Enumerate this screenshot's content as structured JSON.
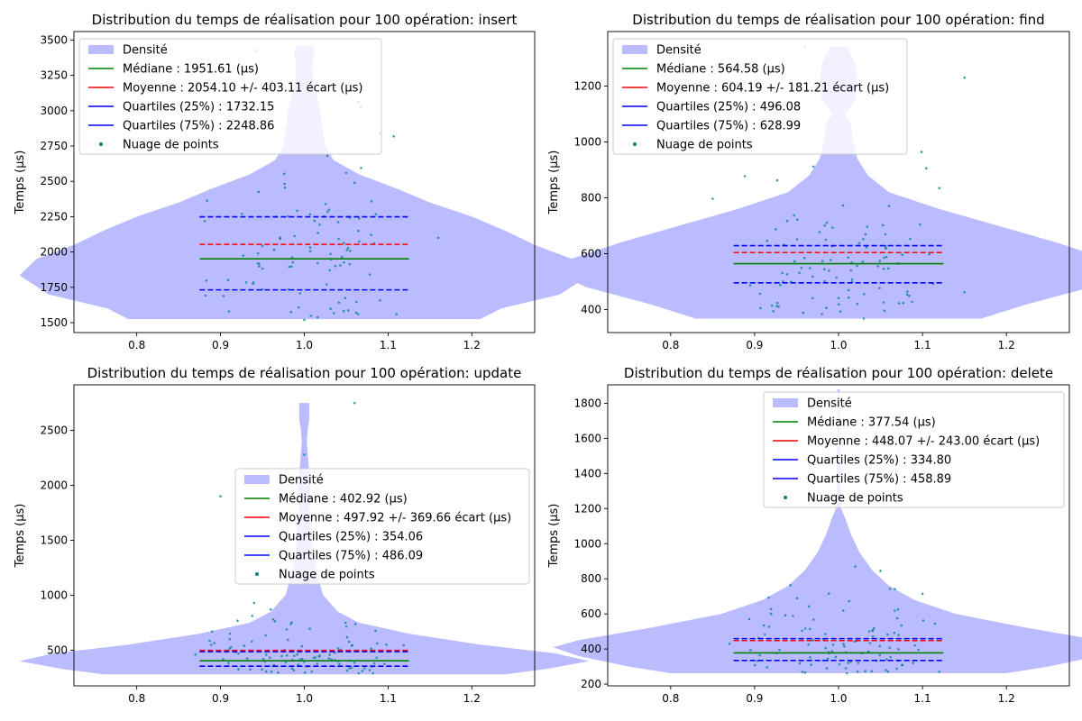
{
  "chart_data": [
    {
      "type": "violin",
      "title": "Distribution du temps de réalisation pour 100 opération: insert",
      "ylabel": "Temps (μs)",
      "xlim": [
        0.725,
        1.275
      ],
      "ylim": [
        1430,
        3560
      ],
      "xticks": [
        "0.8",
        "0.9",
        "1.0",
        "1.1",
        "1.2"
      ],
      "yticks": [
        "1500",
        "1750",
        "2000",
        "2250",
        "2500",
        "2750",
        "3000",
        "3250",
        "3500"
      ],
      "legend": {
        "position": "upper-left",
        "entries": [
          "Densité",
          "Médiane : 1951.61 (μs)",
          "Moyenne : 2054.10 +/- 403.11 écart (μs)",
          "Quartiles (25%) : 1732.15",
          "Quartiles (75%) : 2248.86",
          "Nuage de points"
        ]
      },
      "stats": {
        "median": 1951.61,
        "mean": 2054.1,
        "q25": 1732.15,
        "q75": 2248.86
      },
      "density_profile": [
        [
          1525,
          0.42
        ],
        [
          1600,
          0.47
        ],
        [
          1700,
          0.61
        ],
        [
          1835,
          0.68
        ],
        [
          1950,
          0.64
        ],
        [
          2050,
          0.55
        ],
        [
          2150,
          0.48
        ],
        [
          2250,
          0.4
        ],
        [
          2350,
          0.3
        ],
        [
          2450,
          0.22
        ],
        [
          2550,
          0.13
        ],
        [
          2650,
          0.07
        ],
        [
          2750,
          0.05
        ],
        [
          2850,
          0.045
        ],
        [
          2950,
          0.04
        ],
        [
          3050,
          0.035
        ],
        [
          3150,
          0.025
        ],
        [
          3250,
          0.02
        ],
        [
          3350,
          0.02
        ],
        [
          3420,
          0.025
        ],
        [
          3460,
          0.018
        ]
      ],
      "points": {
        "n": 100,
        "seed": 11,
        "highlights": [
          [
            1.16,
            2100
          ],
          [
            1.09,
            2840
          ],
          [
            1.06,
            2490
          ],
          [
            1.05,
            2560
          ],
          [
            1.11,
            1560
          ],
          [
            1.0,
            1520
          ],
          [
            0.91,
            1580
          ]
        ]
      },
      "colors": {
        "density": "#bbbbff",
        "median": "#008000",
        "mean": "#ff0000",
        "quartile": "#0000ff",
        "points": "#008080"
      }
    },
    {
      "type": "violin",
      "title": "Distribution du temps de réalisation pour 100 opération: find",
      "ylabel": "Temps (μs)",
      "xlim": [
        0.725,
        1.275
      ],
      "ylim": [
        318,
        1395
      ],
      "xticks": [
        "0.8",
        "0.9",
        "1.0",
        "1.1",
        "1.2"
      ],
      "yticks": [
        "400",
        "600",
        "800",
        "1000",
        "1200"
      ],
      "legend": {
        "position": "upper-left",
        "entries": [
          "Densité",
          "Médiane : 564.58 (μs)",
          "Moyenne : 604.19 +/- 181.21 écart (μs)",
          "Quartiles (25%) : 496.08",
          "Quartiles (75%) : 628.99",
          "Nuage de points"
        ]
      },
      "stats": {
        "median": 564.58,
        "mean": 604.19,
        "q25": 496.08,
        "q75": 628.99
      },
      "density_profile": [
        [
          368,
          0.34
        ],
        [
          420,
          0.45
        ],
        [
          480,
          0.6
        ],
        [
          535,
          0.68
        ],
        [
          580,
          0.64
        ],
        [
          640,
          0.52
        ],
        [
          700,
          0.38
        ],
        [
          760,
          0.24
        ],
        [
          820,
          0.12
        ],
        [
          880,
          0.07
        ],
        [
          940,
          0.045
        ],
        [
          1000,
          0.035
        ],
        [
          1060,
          0.03
        ],
        [
          1100,
          0.015
        ],
        [
          1150,
          0.04
        ],
        [
          1220,
          0.045
        ],
        [
          1280,
          0.04
        ],
        [
          1340,
          0.02
        ]
      ],
      "points": {
        "n": 100,
        "seed": 23,
        "highlights": [
          [
            1.15,
            1230
          ],
          [
            0.85,
            797
          ],
          [
            1.12,
            835
          ],
          [
            0.97,
            912
          ],
          [
            0.96,
            1340
          ],
          [
            1.15,
            462
          ],
          [
            1.03,
            368
          ]
        ]
      },
      "colors": {
        "density": "#bbbbff",
        "median": "#008000",
        "mean": "#ff0000",
        "quartile": "#0000ff",
        "points": "#008080"
      }
    },
    {
      "type": "violin",
      "title": "Distribution du temps de réalisation pour 100 opération: update",
      "ylabel": "Temps (μs)",
      "xlim": [
        0.725,
        1.275
      ],
      "ylim": [
        175,
        2915
      ],
      "xticks": [
        "0.8",
        "0.9",
        "1.0",
        "1.1",
        "1.2"
      ],
      "yticks": [
        "500",
        "1000",
        "1500",
        "2000",
        "2500"
      ],
      "legend": {
        "position": "center-right",
        "entries": [
          "Densité",
          "Médiane : 402.92 (μs)",
          "Moyenne : 497.92 +/- 369.66 écart (μs)",
          "Quartiles (25%) : 354.06",
          "Quartiles (75%) : 486.09",
          "Nuage de points"
        ]
      },
      "stats": {
        "median": 402.92,
        "mean": 497.92,
        "q25": 354.06,
        "q75": 486.09
      },
      "density_profile": [
        [
          280,
          0.48
        ],
        [
          330,
          0.58
        ],
        [
          400,
          0.68
        ],
        [
          470,
          0.6
        ],
        [
          550,
          0.42
        ],
        [
          650,
          0.25
        ],
        [
          750,
          0.13
        ],
        [
          850,
          0.08
        ],
        [
          1000,
          0.045
        ],
        [
          1200,
          0.03
        ],
        [
          1400,
          0.02
        ],
        [
          1600,
          0.018
        ],
        [
          1800,
          0.012
        ],
        [
          2000,
          0.015
        ],
        [
          2200,
          0.01
        ],
        [
          2400,
          0.006
        ],
        [
          2500,
          0.008
        ],
        [
          2600,
          0.012
        ],
        [
          2750,
          0.012
        ]
      ],
      "points": {
        "n": 100,
        "seed": 37,
        "highlights": [
          [
            1.06,
            2750
          ],
          [
            1.0,
            2280
          ],
          [
            0.9,
            1900
          ],
          [
            0.94,
            930
          ],
          [
            0.96,
            870
          ],
          [
            0.89,
            670
          ],
          [
            0.87,
            460
          ]
        ]
      },
      "colors": {
        "density": "#bbbbff",
        "median": "#008000",
        "mean": "#ff0000",
        "quartile": "#0000ff",
        "points": "#008080"
      }
    },
    {
      "type": "violin",
      "title": "Distribution du temps de réalisation pour 100 opération: delete",
      "ylabel": "Temps (μs)",
      "xlim": [
        0.725,
        1.275
      ],
      "ylim": [
        190,
        1905
      ],
      "xticks": [
        "0.8",
        "0.9",
        "1.0",
        "1.1",
        "1.2"
      ],
      "yticks": [
        "200",
        "400",
        "600",
        "800",
        "1000",
        "1200",
        "1400",
        "1600",
        "1800"
      ],
      "legend": {
        "position": "upper-right",
        "entries": [
          "Densité",
          "Médiane : 377.54 (μs)",
          "Moyenne : 448.07 +/- 243.00 écart (μs)",
          "Quartiles (25%) : 334.80",
          "Quartiles (75%) : 458.89",
          "Nuage de points"
        ]
      },
      "stats": {
        "median": 377.54,
        "mean": 448.07,
        "q25": 334.8,
        "q75": 458.89
      },
      "density_profile": [
        [
          262,
          0.4
        ],
        [
          300,
          0.5
        ],
        [
          360,
          0.62
        ],
        [
          410,
          0.68
        ],
        [
          450,
          0.62
        ],
        [
          520,
          0.45
        ],
        [
          600,
          0.28
        ],
        [
          680,
          0.18
        ],
        [
          760,
          0.12
        ],
        [
          850,
          0.08
        ],
        [
          950,
          0.05
        ],
        [
          1050,
          0.03
        ],
        [
          1150,
          0.015
        ],
        [
          1200,
          0.006
        ],
        [
          1300,
          0.005
        ],
        [
          1500,
          0.004
        ],
        [
          1700,
          0.003
        ],
        [
          1880,
          0.003
        ]
      ],
      "points": {
        "n": 100,
        "seed": 53,
        "highlights": [
          [
            1.1,
            715
          ],
          [
            1.05,
            845
          ],
          [
            1.02,
            870
          ],
          [
            1.07,
            575
          ],
          [
            0.87,
            430
          ],
          [
            1.12,
            270
          ],
          [
            1.01,
            262
          ]
        ]
      },
      "colors": {
        "density": "#bbbbff",
        "median": "#008000",
        "mean": "#ff0000",
        "quartile": "#0000ff",
        "points": "#008080"
      }
    }
  ]
}
